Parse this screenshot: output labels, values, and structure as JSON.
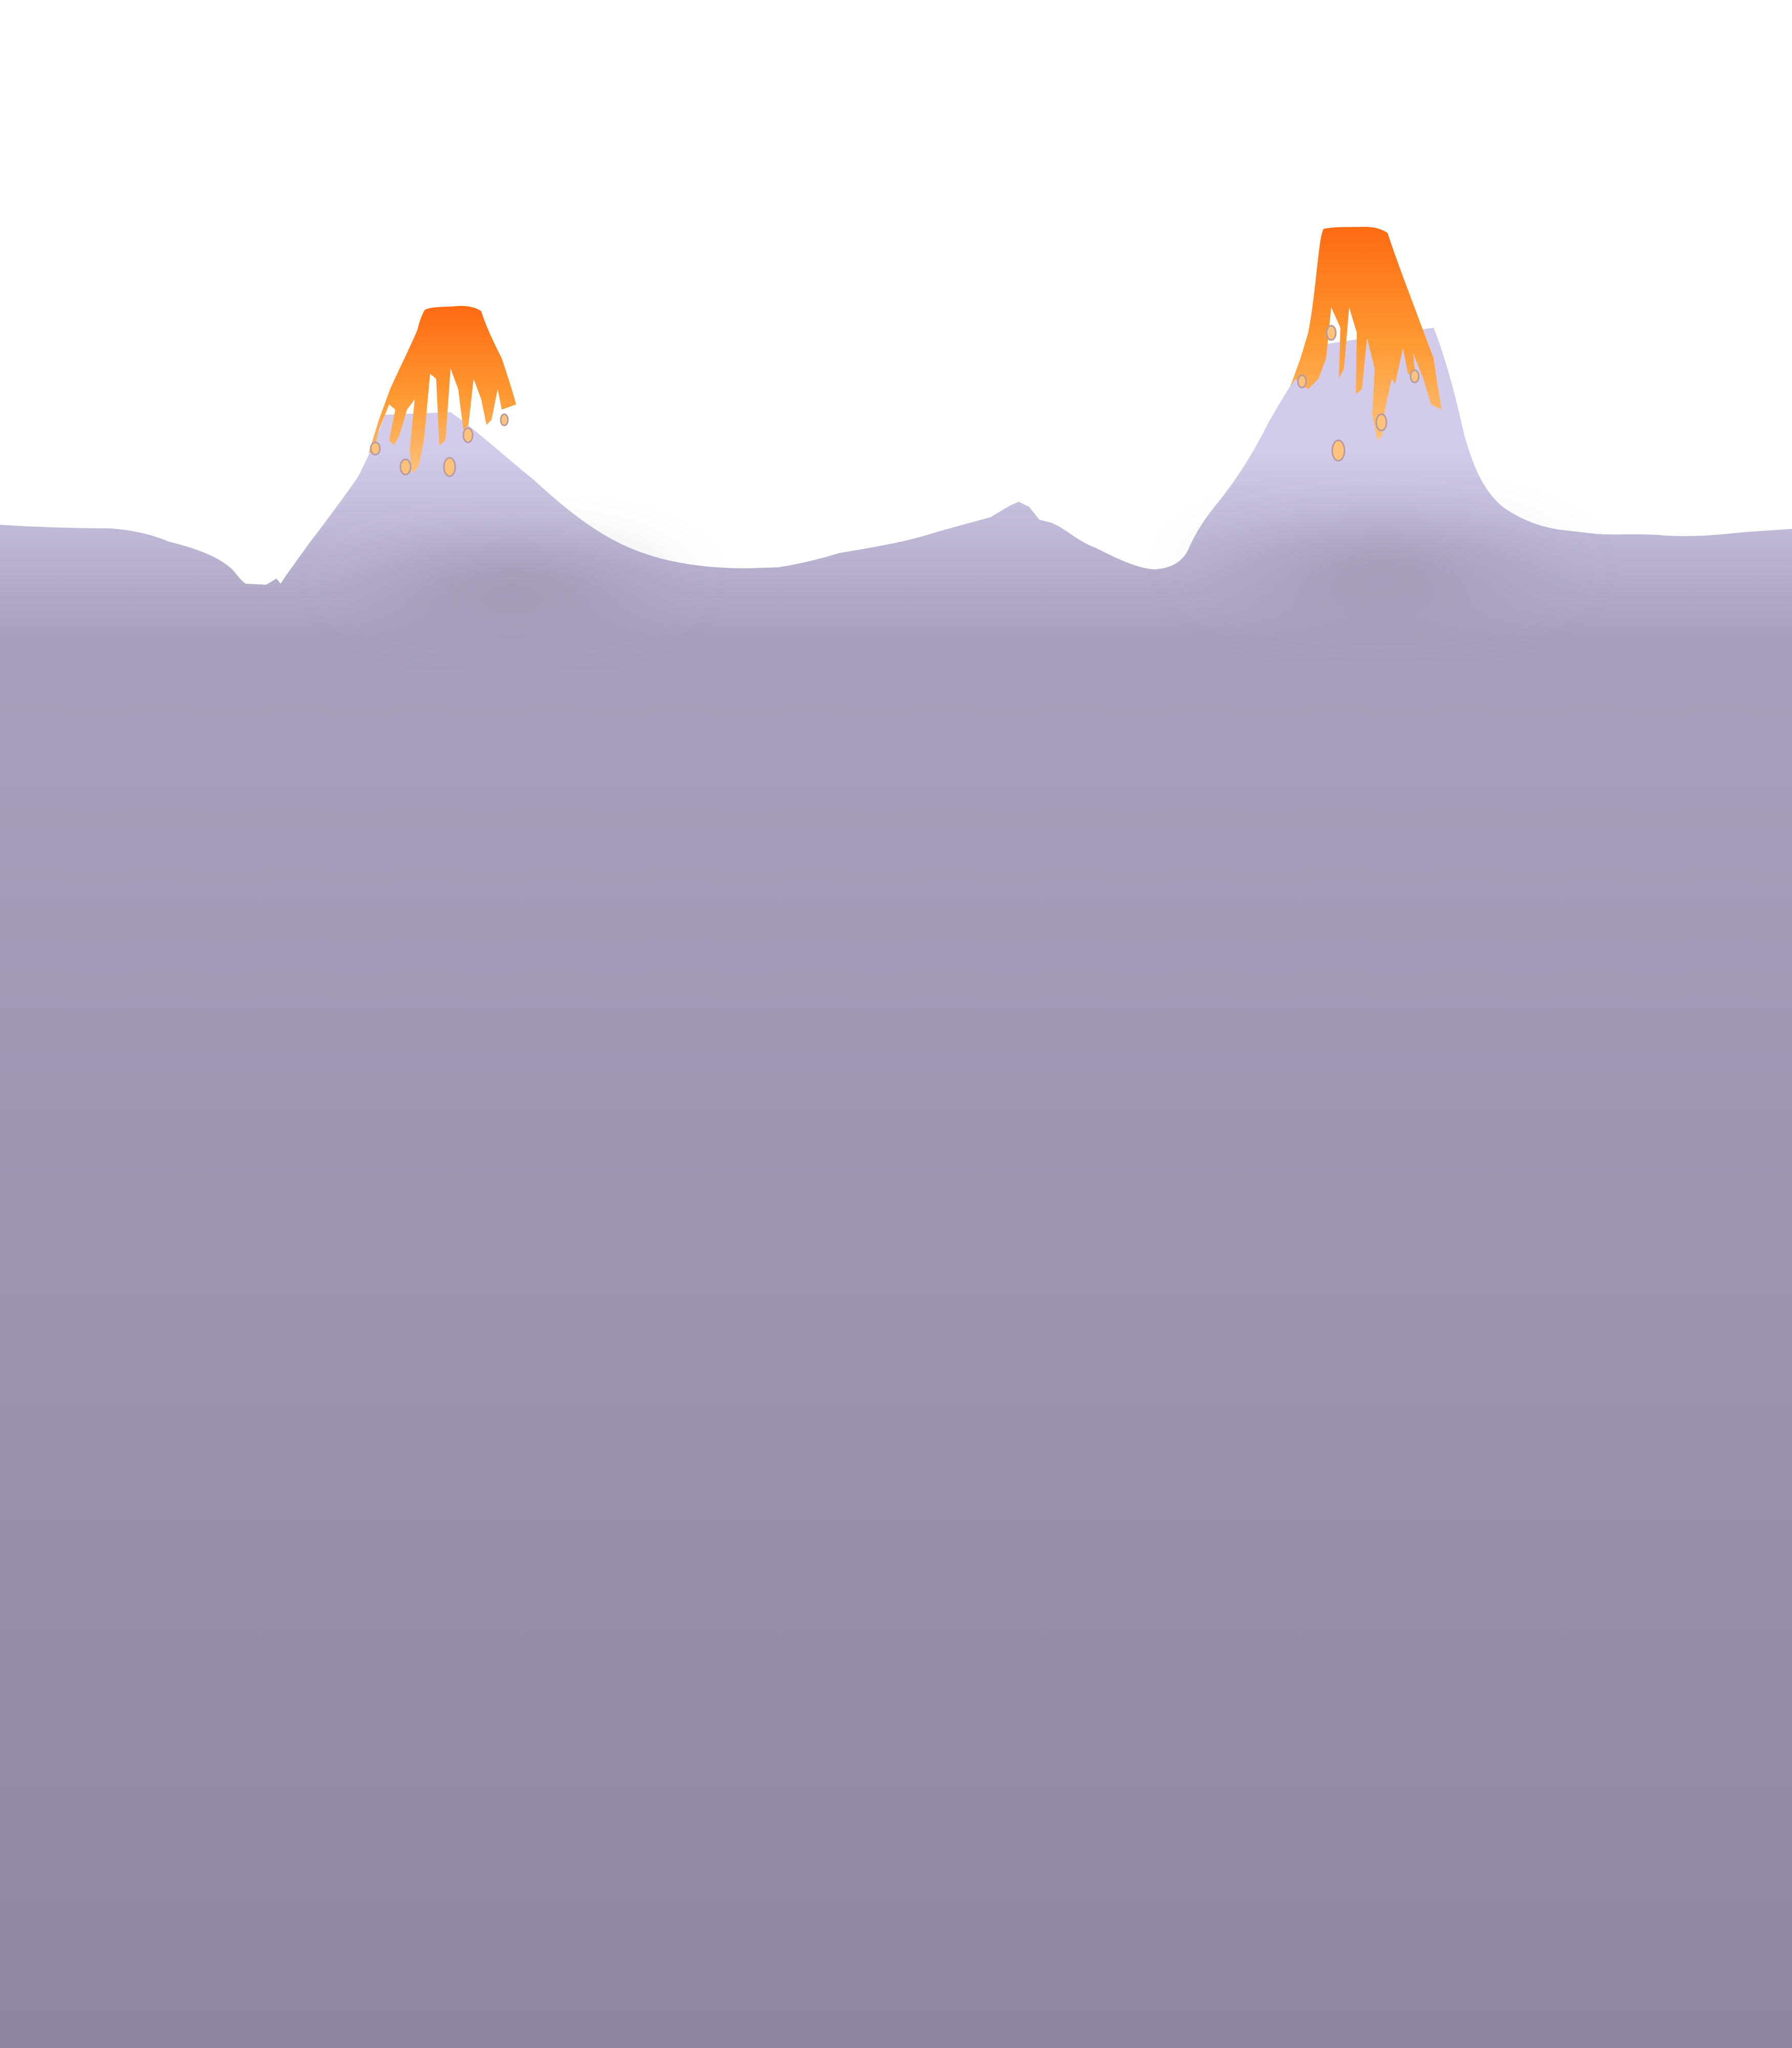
{
  "scene": {
    "description_visible_text": "",
    "colors": {
      "sky": "#ffffff",
      "terrain_light": "#d3cbeb",
      "terrain_mid": "#a89fbe",
      "terrain_dark": "#8f86a2",
      "lava_hot": "#ff6a12",
      "lava_warm": "#ff9a33",
      "lava_cool": "#ffc27a",
      "lava_drip_shadow": "#b79aa0"
    },
    "elements": {
      "left_volcano": {
        "name": "left-volcano",
        "erupting": true
      },
      "right_volcano": {
        "name": "right-volcano",
        "erupting": true
      },
      "middle_hill": {
        "name": "middle-hill"
      },
      "ground": {
        "name": "ground-mass"
      }
    }
  }
}
